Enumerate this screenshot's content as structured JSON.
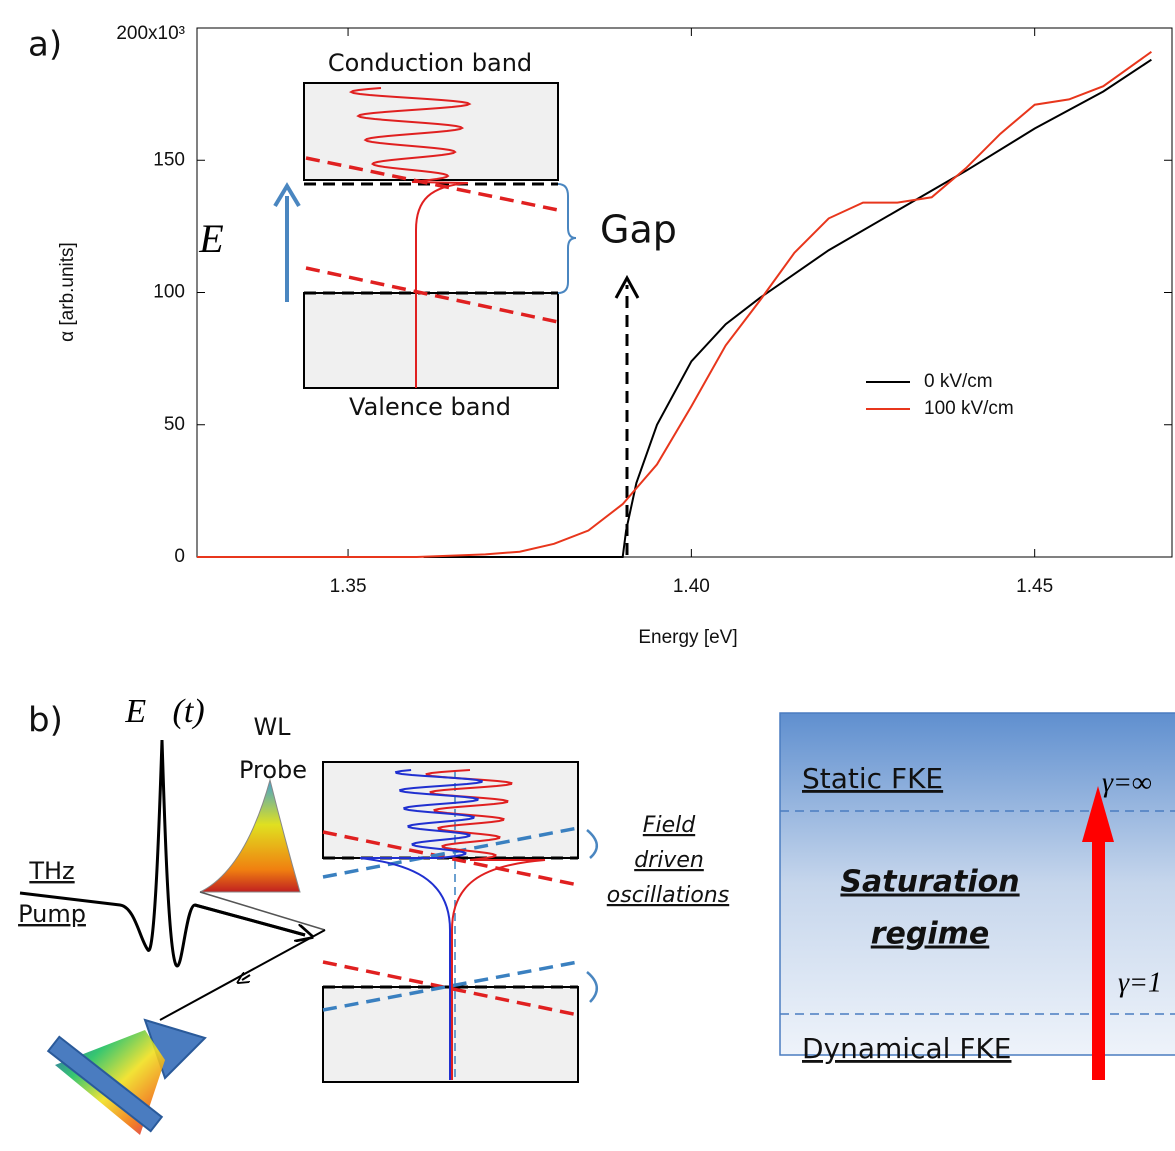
{
  "chart_data": {
    "type": "line",
    "panel_label": "a)",
    "xlabel": "Energy [eV]",
    "ylabel": "α [arb.units]",
    "xlim": [
      1.328,
      1.47
    ],
    "ylim": [
      0,
      200
    ],
    "xticks": [
      1.35,
      {
        "value": 1.4,
        "label": "1.40"
      },
      1.45
    ],
    "yticks": [
      0,
      50,
      100,
      150,
      {
        "value": 200,
        "label": "200x10³"
      }
    ],
    "legend": "right",
    "series": [
      {
        "name": "0 kV/cm",
        "color": "#000000",
        "x": [
          1.361,
          1.38,
          1.39,
          1.3905,
          1.392,
          1.395,
          1.4,
          1.405,
          1.41,
          1.42,
          1.43,
          1.44,
          1.45,
          1.46,
          1.467
        ],
        "values": [
          0,
          0,
          0,
          10,
          28,
          50,
          74,
          88,
          98,
          116,
          131,
          146,
          162,
          176,
          188
        ]
      },
      {
        "name": "100 kV/cm",
        "color": "#e8361c",
        "x": [
          1.328,
          1.36,
          1.37,
          1.375,
          1.38,
          1.385,
          1.39,
          1.395,
          1.4,
          1.405,
          1.41,
          1.415,
          1.42,
          1.425,
          1.43,
          1.435,
          1.44,
          1.445,
          1.45,
          1.455,
          1.46,
          1.467
        ],
        "values": [
          0,
          0,
          1,
          2,
          5,
          10,
          20,
          35,
          57,
          80,
          97,
          115,
          128,
          134,
          134,
          136,
          147,
          160,
          171,
          173,
          178,
          191
        ]
      }
    ],
    "annotations": {
      "conduction": "Conduction band",
      "valence": "Valence band",
      "gap": "Gap",
      "field": "E⃗"
    }
  },
  "panel_b": {
    "label": "b)",
    "field": "E⃗(t)",
    "probe": [
      "WL",
      "Probe"
    ],
    "pump": [
      "THz",
      "Pump"
    ],
    "oscillations": [
      "Field",
      "driven",
      "oscillations"
    ],
    "regimes": {
      "static": "Static FKE",
      "saturation": [
        "Saturation",
        "regime"
      ],
      "dynamical": "Dynamical FKE",
      "gamma_inf": "γ=∞",
      "gamma_one": "γ=1"
    }
  }
}
